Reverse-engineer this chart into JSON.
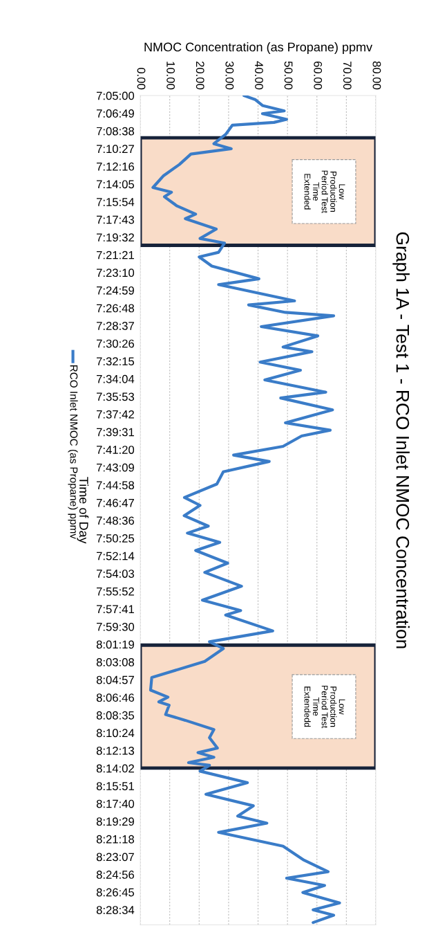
{
  "chart_data": {
    "type": "line",
    "title": "Graph 1A - Test 1 - RCO Inlet NMOC Concentration",
    "xlabel": "NMOC Concentration (as Propane) ppmv",
    "ylabel": "Time of Day",
    "series": [
      {
        "name": "RCO Inlet NMOC (as Propane) ppmv",
        "color": "#3a7cc8",
        "x": [
          35.2,
          39.1,
          41.5,
          48.9,
          41.5,
          49.7,
          45.4,
          31.3,
          29.0,
          25.0,
          30.9,
          17.2,
          13.3,
          7.8,
          4.3,
          10.6,
          8.2,
          12.5,
          18.8,
          15.3,
          25.8,
          20.3,
          28.6,
          26.6,
          20.0,
          24.3,
          40.3,
          26.6,
          52.4,
          36.8,
          49.3,
          65.7,
          41.1,
          60.3,
          48.5,
          58.3,
          40.7,
          54.4,
          42.3,
          63.0,
          47.7,
          65.3,
          49.3,
          64.5,
          54.8,
          48.5,
          31.7,
          43.8,
          28.2,
          26.0,
          15.0,
          20.3,
          14.9,
          23.1,
          16.0,
          27.0,
          18.8,
          29.7,
          21.9,
          34.4,
          21.1,
          34.1,
          29.0,
          45.0,
          23.5,
          28.2,
          21.9,
          3.9,
          3.5,
          9.4,
          6.3,
          9.8,
          8.6,
          15.3,
          25.0,
          23.5,
          26.2,
          19.6,
          25.0,
          16.4,
          23.5,
          20.3,
          36.4,
          22.3,
          38.4,
          33.1,
          43.0,
          26.6,
          48.5,
          55.6,
          63.8,
          49.7,
          62.6,
          55.2,
          67.7,
          58.7,
          65.7,
          58.7
        ],
        "values": [
          7.0833,
          7.0903,
          7.1003,
          7.1094,
          7.1142,
          7.1239,
          7.1292,
          7.1339,
          7.1497,
          7.1656,
          7.1742,
          7.1833,
          7.2011,
          7.2208,
          7.2406,
          7.2486,
          7.2564,
          7.2722,
          7.2861,
          7.2939,
          7.3117,
          7.3278,
          7.3356,
          7.3514,
          7.3592,
          7.375,
          7.3967,
          7.4067,
          7.4344,
          7.4414,
          7.4542,
          7.46,
          7.4786,
          7.4944,
          7.5133,
          7.5214,
          7.5392,
          7.5531,
          7.5697,
          7.5906,
          7.6006,
          7.6208,
          7.6431,
          7.6556,
          7.6656,
          7.6833,
          7.6983,
          7.7092,
          7.7269,
          7.7478,
          7.7708,
          7.7842,
          7.8019,
          7.8197,
          7.8317,
          7.8475,
          7.8614,
          7.8831,
          7.8989,
          7.9225,
          7.9464,
          7.9642,
          7.9719,
          7.9989,
          8.0175,
          8.0292,
          8.0511,
          8.0786,
          8.1003,
          8.1122,
          8.1203,
          8.1261,
          8.1419,
          8.1519,
          8.1678,
          8.1817,
          8.1994,
          8.2072,
          8.215,
          8.2242,
          8.2289,
          8.2389,
          8.2586,
          8.2783,
          8.2981,
          8.3158,
          8.3278,
          8.3436,
          8.3672,
          8.3911,
          8.4108,
          8.4219,
          8.4344,
          8.4464,
          8.4642,
          8.4761,
          8.4853,
          8.4978
        ]
      }
    ],
    "ylim": [
      8.5017,
      7.0833
    ],
    "yticks": [
      {
        "value": 7.0833,
        "label": "7:05:00"
      },
      {
        "value": 7.1136,
        "label": "7:06:49"
      },
      {
        "value": 7.1439,
        "label": "7:08:38"
      },
      {
        "value": 7.1742,
        "label": "7:10:27"
      },
      {
        "value": 7.2044,
        "label": "7:12:16"
      },
      {
        "value": 7.2347,
        "label": "7:14:05"
      },
      {
        "value": 7.265,
        "label": "7:15:54"
      },
      {
        "value": 7.2953,
        "label": "7:17:43"
      },
      {
        "value": 7.3256,
        "label": "7:19:32"
      },
      {
        "value": 7.3558,
        "label": "7:21:21"
      },
      {
        "value": 7.3861,
        "label": "7:23:10"
      },
      {
        "value": 7.4164,
        "label": "7:24:59"
      },
      {
        "value": 7.4467,
        "label": "7:26:48"
      },
      {
        "value": 7.4769,
        "label": "7:28:37"
      },
      {
        "value": 7.5072,
        "label": "7:30:26"
      },
      {
        "value": 7.5375,
        "label": "7:32:15"
      },
      {
        "value": 7.5678,
        "label": "7:34:04"
      },
      {
        "value": 7.5981,
        "label": "7:35:53"
      },
      {
        "value": 7.6283,
        "label": "7:37:42"
      },
      {
        "value": 7.6586,
        "label": "7:39:31"
      },
      {
        "value": 7.6889,
        "label": "7:41:20"
      },
      {
        "value": 7.7192,
        "label": "7:43:09"
      },
      {
        "value": 7.7494,
        "label": "7:44:58"
      },
      {
        "value": 7.7797,
        "label": "7:46:47"
      },
      {
        "value": 7.81,
        "label": "7:48:36"
      },
      {
        "value": 7.8403,
        "label": "7:50:25"
      },
      {
        "value": 7.8706,
        "label": "7:52:14"
      },
      {
        "value": 7.9008,
        "label": "7:54:03"
      },
      {
        "value": 7.9311,
        "label": "7:55:52"
      },
      {
        "value": 7.9614,
        "label": "7:57:41"
      },
      {
        "value": 7.9917,
        "label": "7:59:30"
      },
      {
        "value": 8.0219,
        "label": "8:01:19"
      },
      {
        "value": 8.0522,
        "label": "8:03:08"
      },
      {
        "value": 8.0825,
        "label": "8:04:57"
      },
      {
        "value": 8.1128,
        "label": "8:06:46"
      },
      {
        "value": 8.1431,
        "label": "8:08:35"
      },
      {
        "value": 8.1733,
        "label": "8:10:24"
      },
      {
        "value": 8.2036,
        "label": "8:12:13"
      },
      {
        "value": 8.2339,
        "label": "8:14:02"
      },
      {
        "value": 8.2642,
        "label": "8:15:51"
      },
      {
        "value": 8.2944,
        "label": "8:17:40"
      },
      {
        "value": 8.3247,
        "label": "8:19:29"
      },
      {
        "value": 8.355,
        "label": "8:21:18"
      },
      {
        "value": 8.3853,
        "label": "8:23:07"
      },
      {
        "value": 8.4156,
        "label": "8:24:56"
      },
      {
        "value": 8.4458,
        "label": "8:26:45"
      },
      {
        "value": 8.4761,
        "label": "8:28:34"
      }
    ],
    "xlim": [
      0,
      80
    ],
    "xticks": [
      {
        "value": 0,
        "label": "0.00"
      },
      {
        "value": 10,
        "label": "10.00"
      },
      {
        "value": 20,
        "label": "20.00"
      },
      {
        "value": 30,
        "label": "30.00"
      },
      {
        "value": 40,
        "label": "40.00"
      },
      {
        "value": 50,
        "label": "50.00"
      },
      {
        "value": 60,
        "label": "60.00"
      },
      {
        "value": 70,
        "label": "70.00"
      },
      {
        "value": 80,
        "label": "80.00"
      }
    ],
    "grid": "x",
    "legend": "left",
    "bands": [
      {
        "axis": "y",
        "from": 7.1556,
        "to": 7.3394,
        "label": "Low\nProduction\nPeriod Test\nTime\nExtended",
        "color": "#f9dcc8"
      },
      {
        "axis": "y",
        "from": 8.0233,
        "to": 8.2336,
        "label": "Low\nProduction\nPeriod Test\nTime\nExtendedd",
        "color": "#f9dcc8"
      }
    ]
  }
}
